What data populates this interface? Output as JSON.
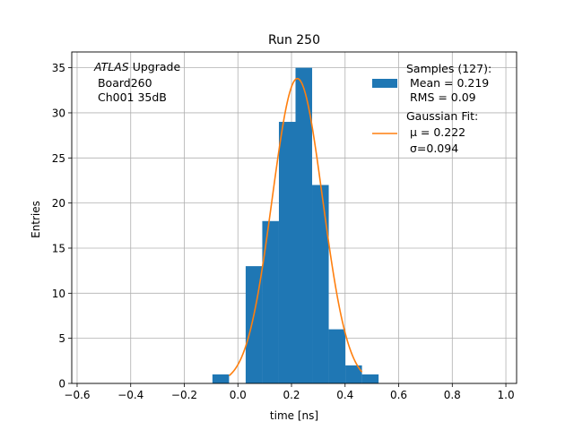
{
  "chart_data": {
    "type": "bar",
    "title": "Run 250",
    "xlabel": "time [ns]",
    "ylabel": "Entries",
    "xlim": [
      -0.62,
      1.04
    ],
    "ylim": [
      0,
      36.75
    ],
    "xticks": [
      -0.6,
      -0.4,
      -0.2,
      0.0,
      0.2,
      0.4,
      0.6,
      0.8,
      1.0
    ],
    "xtick_labels": [
      "−0.6",
      "−0.4",
      "−0.2",
      "0.0",
      "0.2",
      "0.4",
      "0.6",
      "0.8",
      "1.0"
    ],
    "yticks": [
      0,
      5,
      10,
      15,
      20,
      25,
      30,
      35
    ],
    "grid": true,
    "histogram": {
      "name": "Samples (127):",
      "color": "#1f77b4",
      "bin_edges": [
        -0.095,
        -0.033,
        0.029,
        0.091,
        0.153,
        0.215,
        0.277,
        0.339,
        0.401,
        0.463,
        0.525
      ],
      "counts": [
        1,
        0,
        13,
        18,
        29,
        35,
        22,
        6,
        2,
        1
      ]
    },
    "fit": {
      "name": "Gaussian Fit:",
      "color": "#ff7f0e",
      "mu": 0.222,
      "sigma": 0.094,
      "amplitude": 33.8,
      "x_range": [
        -0.033,
        0.463
      ]
    },
    "legend": {
      "location": "top-right",
      "samples_lines": [
        "Samples (127):",
        " Mean = 0.219",
        " RMS = 0.09"
      ],
      "fit_lines": [
        "Gaussian Fit:",
        " μ = 0.222",
        " σ=0.094"
      ]
    },
    "annotation": {
      "location": "top-left",
      "italic": "ATLAS",
      "rest": " Upgrade",
      "lines": [
        " Board260",
        " Ch001 35dB"
      ]
    }
  }
}
